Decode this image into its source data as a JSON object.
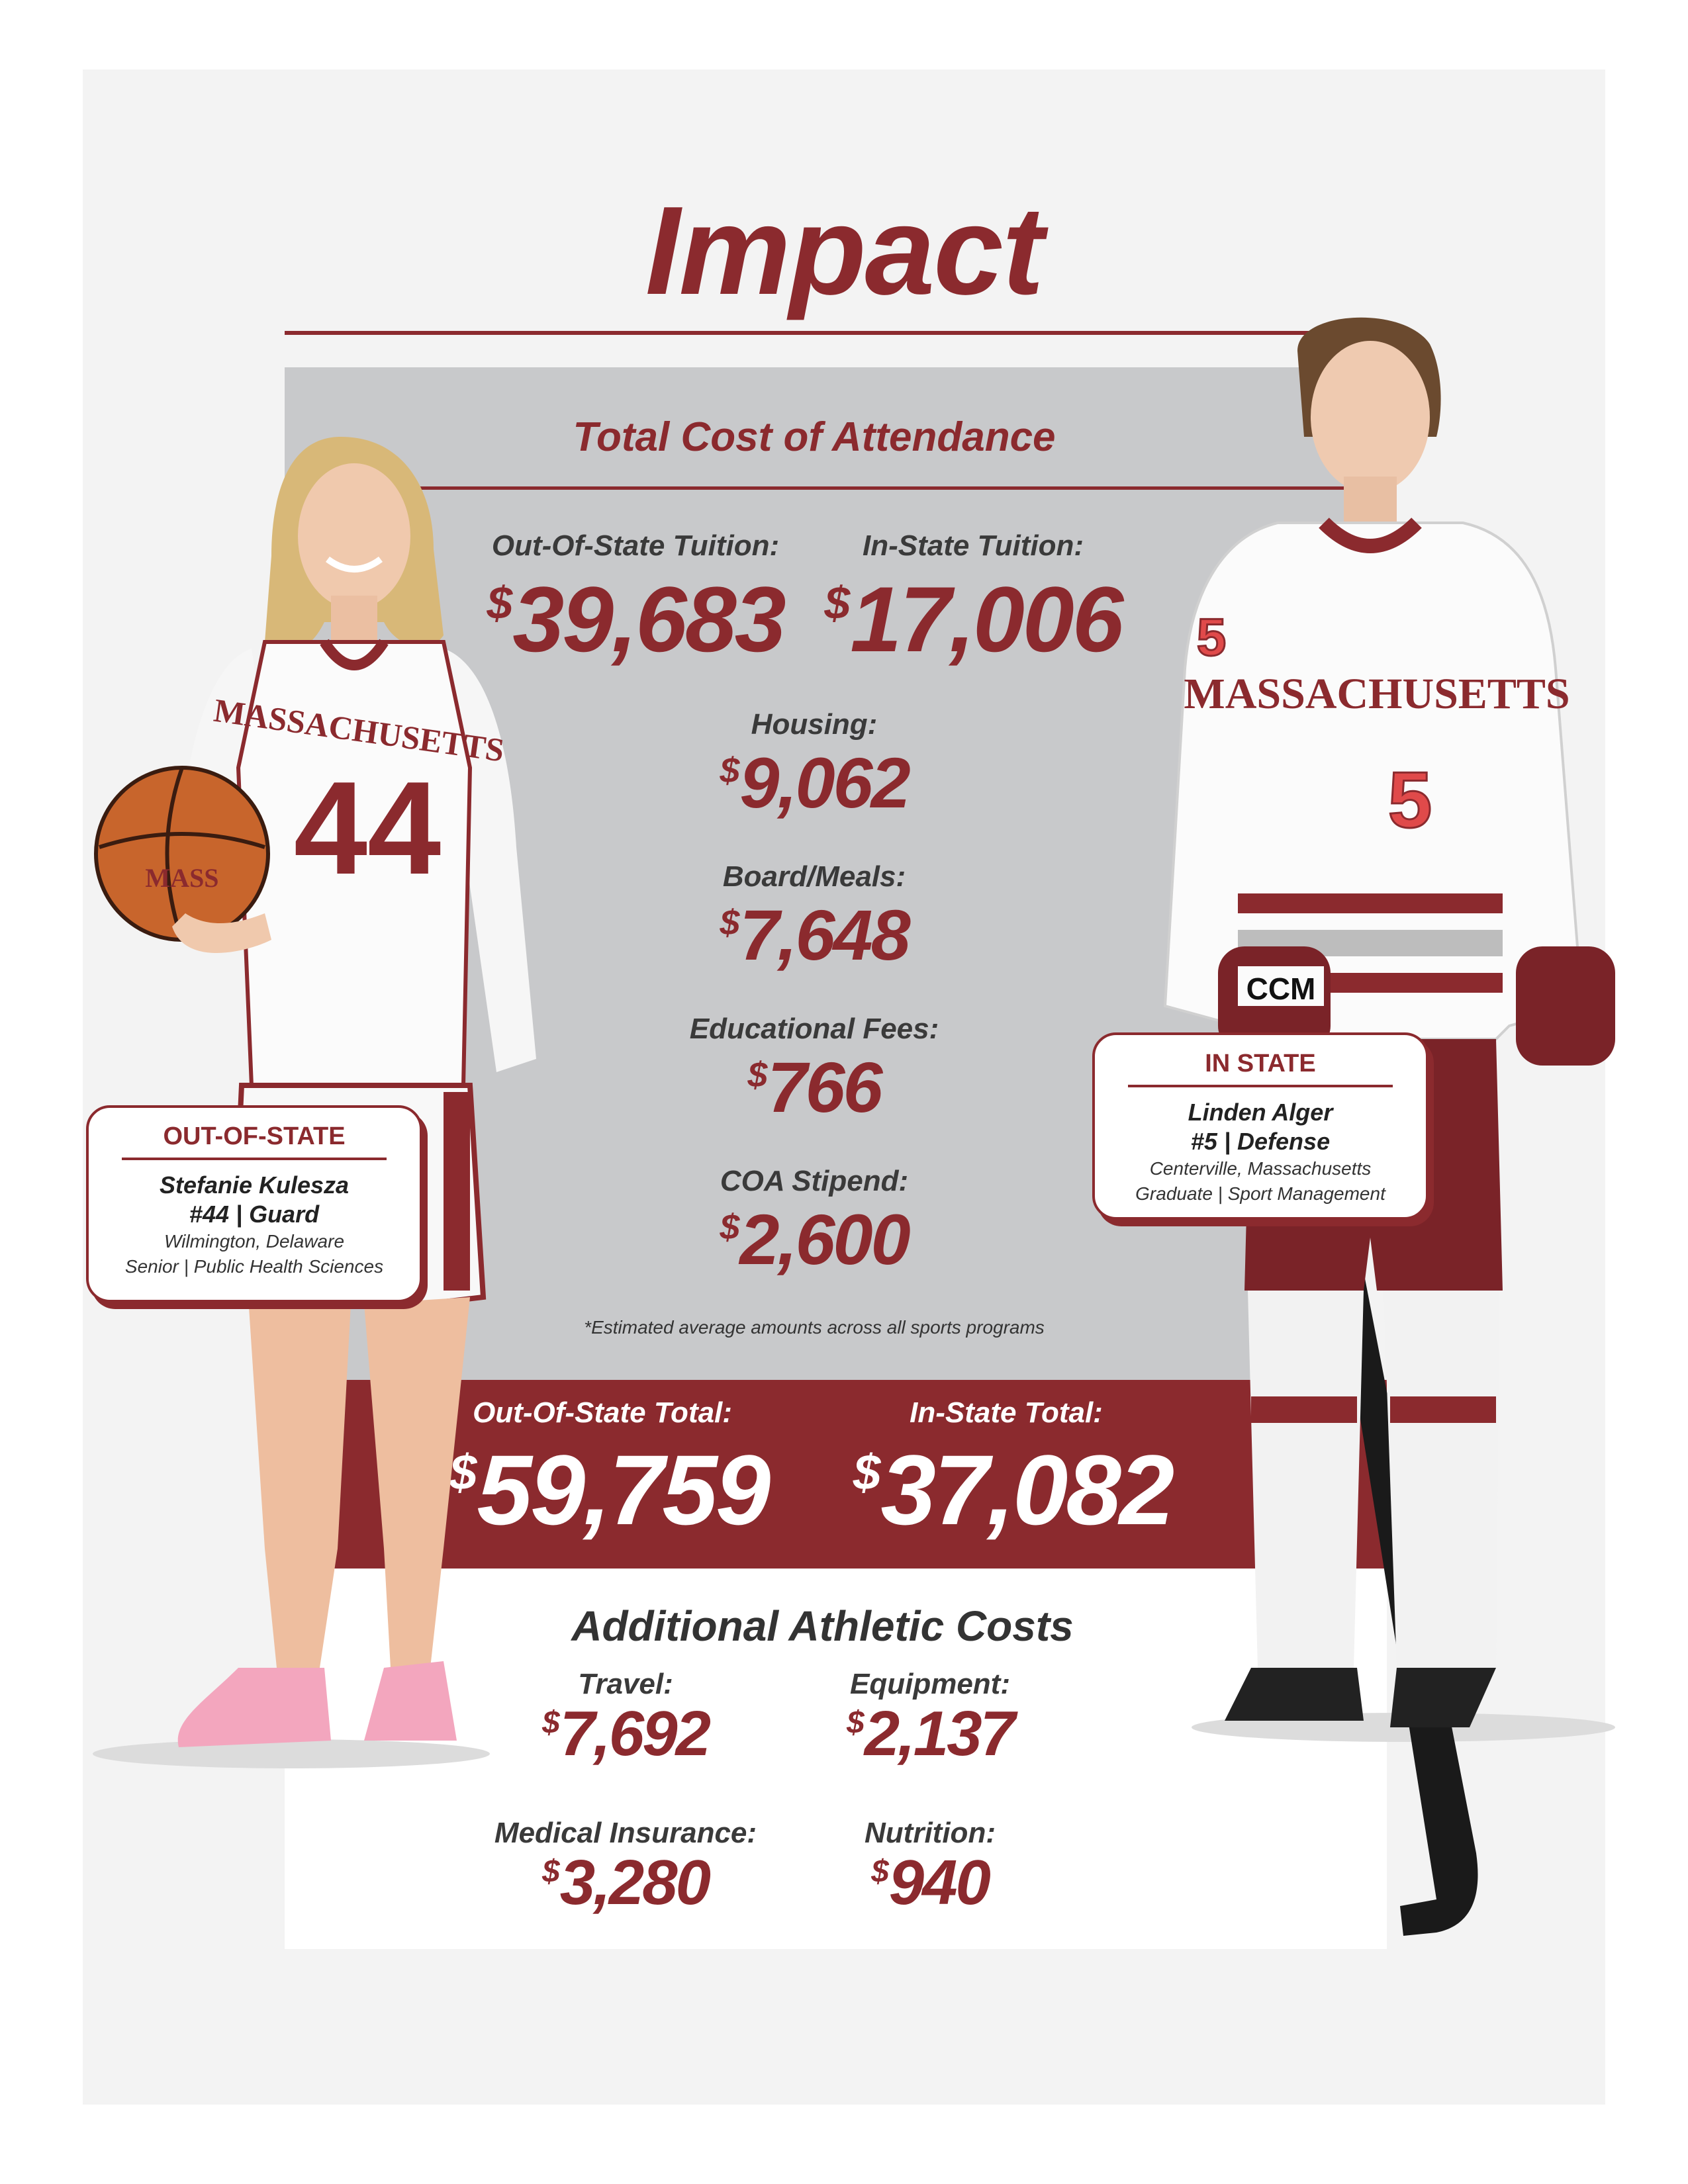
{
  "page": {
    "title": "Impact"
  },
  "cost_of_attendance": {
    "heading": "Total Cost of Attendance",
    "out_of_state_tuition": {
      "label": "Out-Of-State Tuition:",
      "currency": "$",
      "amount": "39,683"
    },
    "in_state_tuition": {
      "label": "In-State Tuition:",
      "currency": "$",
      "amount": "17,006"
    },
    "housing": {
      "label": "Housing:",
      "currency": "$",
      "amount": "9,062"
    },
    "board_meals": {
      "label": "Board/Meals:",
      "currency": "$",
      "amount": "7,648"
    },
    "educational_fees": {
      "label": "Educational Fees:",
      "currency": "$",
      "amount": "766"
    },
    "coa_stipend": {
      "label": "COA Stipend:",
      "currency": "$",
      "amount": "2,600"
    },
    "note": "*Estimated average amounts across all sports programs"
  },
  "totals": {
    "out_of_state": {
      "label": "Out-Of-State Total:",
      "currency": "$",
      "amount": "59,759"
    },
    "in_state": {
      "label": "In-State Total:",
      "currency": "$",
      "amount": "37,082"
    }
  },
  "additional_costs": {
    "heading": "Additional Athletic Costs",
    "travel": {
      "label": "Travel:",
      "currency": "$",
      "amount": "7,692"
    },
    "equipment": {
      "label": "Equipment:",
      "currency": "$",
      "amount": "2,137"
    },
    "medical_insurance": {
      "label": "Medical Insurance:",
      "currency": "$",
      "amount": "3,280"
    },
    "nutrition": {
      "label": "Nutrition:",
      "currency": "$",
      "amount": "940"
    }
  },
  "athletes": {
    "out_of_state": {
      "card_heading": "OUT-OF-STATE",
      "name": "Stefanie Kulesza",
      "number_position": "#44 | Guard",
      "hometown": "Wilmington, Delaware",
      "class_major": "Senior | Public Health Sciences",
      "jersey_text": "MASSACHUSETTS",
      "jersey_number": "44",
      "ball_text": "MASS"
    },
    "in_state": {
      "card_heading": "IN STATE",
      "name": "Linden Alger",
      "number_position": "#5 | Defense",
      "hometown": "Centerville, Massachusetts",
      "class_major": "Graduate | Sport Management",
      "jersey_text": "MASSACHUSETTS",
      "jersey_number": "5",
      "glove_text": "CCM"
    }
  },
  "colors": {
    "maroon": "#8b2a2e",
    "gray_panel": "#c8c9cb",
    "page_bg": "#f3f3f3"
  }
}
